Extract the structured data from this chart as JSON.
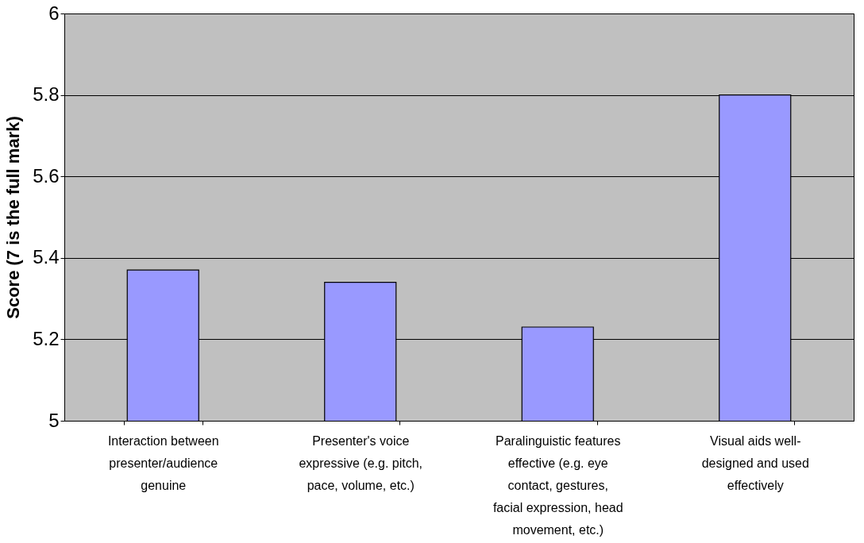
{
  "chart_data": {
    "type": "bar",
    "ylabel": "Score (7 is the full mark)",
    "categories": [
      "Interaction between presenter/audience genuine",
      "Presenter's voice expressive (e.g. pitch, pace, volume, etc.)",
      "Paralinguistic features effective (e.g. eye contact, gestures, facial expression, head movement, etc.)",
      "Visual aids well-designed and used effectively"
    ],
    "values": [
      5.37,
      5.34,
      5.23,
      5.8
    ],
    "color": "#9999ff",
    "ylim": [
      5,
      6
    ],
    "yticks": [
      5,
      5.2,
      5.4,
      5.6,
      5.8,
      6
    ],
    "grid": "y"
  }
}
